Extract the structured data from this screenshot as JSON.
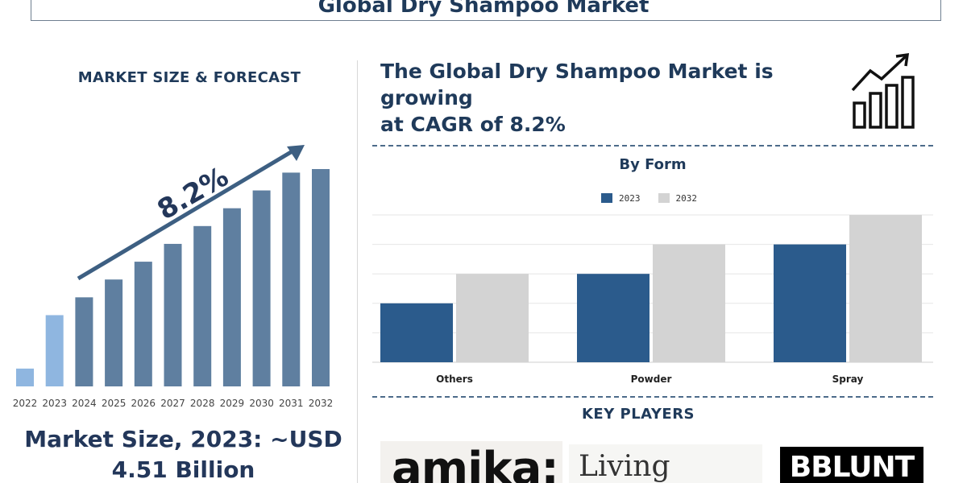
{
  "header": {
    "title": "Global Dry Shampoo Market"
  },
  "left": {
    "heading": "MARKET SIZE & FORECAST",
    "market_size_line1": "Market Size, 2023: ~USD",
    "market_size_line2": "4.51 Billion"
  },
  "growth": {
    "line1": "The Global Dry Shampoo Market is growing",
    "line2": "at CAGR of 8.2%"
  },
  "key_players": {
    "title": "KEY PLAYERS",
    "logos": [
      "amika:",
      "Living proof.",
      "BBLUNT"
    ]
  },
  "colors": {
    "bar_forecast": "#5f7fa0",
    "bar_early": "#8fb6e0",
    "arrow": "#3d5f82",
    "series_2023": "#2b5b8c",
    "series_2032": "#d3d3d3"
  },
  "chart_data": [
    {
      "type": "bar",
      "title": "",
      "categories": [
        "2022",
        "2023",
        "2024",
        "2025",
        "2026",
        "2027",
        "2028",
        "2029",
        "2030",
        "2031",
        "2032"
      ],
      "values": [
        1,
        4,
        5,
        6,
        7,
        8,
        9,
        10,
        11,
        12,
        12.2
      ],
      "annotation": "8.2%",
      "grid": false,
      "legend": "none"
    },
    {
      "type": "bar",
      "title": "By Form",
      "categories": [
        "Others",
        "Powder",
        "Spray"
      ],
      "series": [
        {
          "name": "2023",
          "values": [
            2,
            3,
            4
          ]
        },
        {
          "name": "2032",
          "values": [
            3,
            4,
            5
          ]
        }
      ],
      "ylim": [
        0,
        5
      ],
      "grid": true,
      "legend": "top-center"
    }
  ]
}
